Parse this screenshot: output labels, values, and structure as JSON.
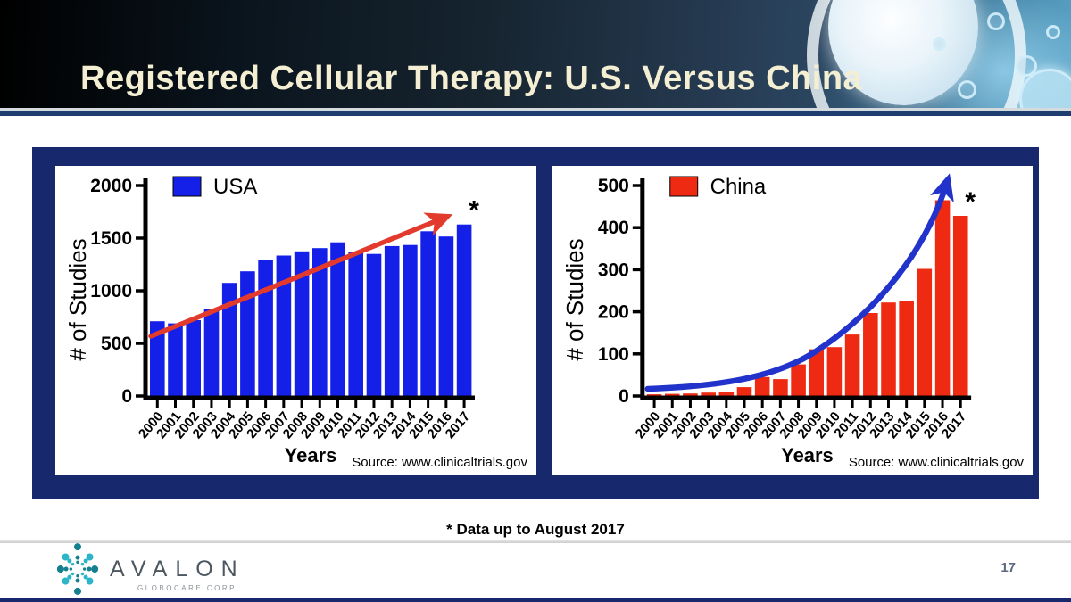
{
  "header": {
    "title": "Registered Cellular Therapy: U.S. Versus China"
  },
  "footnote": "* Data up to August 2017",
  "footer": {
    "brand": "AVALON",
    "brand_sub": "GLOBOCARE CORP.",
    "page_number": "17",
    "logo_colors": {
      "dark_teal": "#14808f",
      "light_teal": "#2cb4c7"
    }
  },
  "chart_data": [
    {
      "type": "bar",
      "legend": "USA",
      "categories": [
        "2000",
        "2001",
        "2002",
        "2003",
        "2004",
        "2005",
        "2006",
        "2007",
        "2008",
        "2009",
        "2010",
        "2011",
        "2012",
        "2013",
        "2014",
        "2015",
        "2016",
        "2017"
      ],
      "values": [
        710,
        690,
        720,
        830,
        1075,
        1185,
        1295,
        1335,
        1375,
        1405,
        1460,
        1370,
        1350,
        1425,
        1435,
        1565,
        1515,
        1630
      ],
      "ylabel": "# of Studies",
      "xlabel": "Years",
      "source": "Source: www.clinicaltrials.gov",
      "ylim": [
        0,
        2000
      ],
      "yticks": [
        0,
        500,
        1000,
        1500,
        2000
      ],
      "bar_color": "#1420e7",
      "trend": {
        "shape": "linear",
        "color": "#e23b2e"
      },
      "annotation": "*",
      "grid": false,
      "legend_position": "top-left-inside"
    },
    {
      "type": "bar",
      "legend": "China",
      "categories": [
        "2000",
        "2001",
        "2002",
        "2003",
        "2004",
        "2005",
        "2006",
        "2007",
        "2008",
        "2009",
        "2010",
        "2011",
        "2012",
        "2013",
        "2014",
        "2015",
        "2016",
        "2017"
      ],
      "values": [
        4,
        5,
        6,
        8,
        10,
        21,
        45,
        40,
        75,
        111,
        116,
        146,
        197,
        222,
        226,
        302,
        465,
        428
      ],
      "ylabel": "# of Studies",
      "xlabel": "Years",
      "source": "Source: www.clinicaltrials.gov",
      "ylim": [
        0,
        500
      ],
      "yticks": [
        0,
        100,
        200,
        300,
        400,
        500
      ],
      "bar_color": "#ee2a12",
      "trend": {
        "shape": "exponential",
        "color": "#2133cb"
      },
      "annotation": "*",
      "grid": false,
      "legend_position": "top-left-inside"
    }
  ]
}
